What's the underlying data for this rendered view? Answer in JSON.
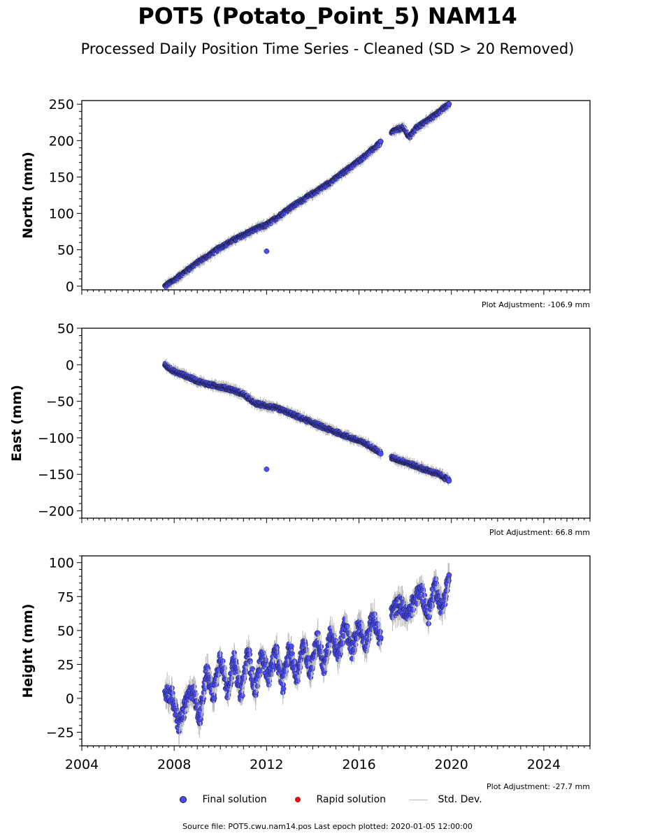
{
  "title": "POT5 (Potato_Point_5) NAM14",
  "subtitle": "Processed Daily Position Time Series - Cleaned (SD > 20 Removed)",
  "legend": {
    "final_label": "Final solution",
    "rapid_label": "Rapid solution",
    "std_label": "Std. Dev."
  },
  "footer": "Source file: POT5.cwu.nam14.pos  Last epoch plotted: 2020-01-05 12:00:00",
  "colors": {
    "final": "#4a4cf5",
    "rapid": "#e01010",
    "std": "#bbbbbb",
    "edge": "#1a1a33"
  },
  "chart_data": [
    {
      "type": "scatter",
      "ylabel": "North (mm)",
      "adjustment_text": "Plot Adjustment: -106.9 mm",
      "xlim": [
        2004,
        2026
      ],
      "ylim": [
        -5,
        255
      ],
      "yticks": [
        0,
        50,
        100,
        150,
        200,
        250
      ],
      "x": [
        2007.6,
        2008.0,
        2008.5,
        2009.0,
        2009.5,
        2010.0,
        2010.5,
        2011.0,
        2011.5,
        2012.0,
        2012.5,
        2013.0,
        2013.5,
        2014.0,
        2014.5,
        2015.0,
        2015.5,
        2016.0,
        2016.5,
        2016.9,
        2017.5,
        2017.9,
        2018.2,
        2018.5,
        2019.0,
        2019.5,
        2019.9
      ],
      "y": [
        0,
        8,
        20,
        32,
        42,
        53,
        62,
        70,
        78,
        84,
        95,
        107,
        117,
        127,
        137,
        148,
        160,
        172,
        185,
        196,
        213,
        218,
        205,
        218,
        228,
        240,
        250
      ],
      "outliers": [
        {
          "x": 2012.0,
          "y": 48
        }
      ]
    },
    {
      "type": "scatter",
      "ylabel": "East (mm)",
      "adjustment_text": "Plot Adjustment: 66.8 mm",
      "xlim": [
        2004,
        2026
      ],
      "ylim": [
        -210,
        50
      ],
      "yticks": [
        -200,
        -150,
        -100,
        -50,
        0,
        50
      ],
      "x": [
        2007.6,
        2008.0,
        2008.5,
        2009.0,
        2009.5,
        2010.0,
        2010.5,
        2011.0,
        2011.5,
        2012.0,
        2012.5,
        2013.0,
        2013.5,
        2014.0,
        2014.5,
        2015.0,
        2015.5,
        2016.0,
        2016.5,
        2016.9,
        2017.5,
        2018.0,
        2018.5,
        2019.0,
        2019.5,
        2019.9
      ],
      "y": [
        0,
        -9,
        -15,
        -22,
        -27,
        -30,
        -34,
        -40,
        -53,
        -56,
        -60,
        -66,
        -73,
        -79,
        -86,
        -92,
        -98,
        -104,
        -111,
        -120,
        -128,
        -133,
        -139,
        -145,
        -150,
        -158
      ],
      "outliers": [
        {
          "x": 2012.0,
          "y": -143
        }
      ]
    },
    {
      "type": "scatter",
      "ylabel": "Height (mm)",
      "adjustment_text": "Plot Adjustment: -27.7 mm",
      "xlim": [
        2004,
        2026
      ],
      "ylim": [
        -35,
        105
      ],
      "yticks": [
        -25,
        0,
        25,
        50,
        75,
        100
      ],
      "xticks": [
        2004,
        2008,
        2012,
        2016,
        2020,
        2024
      ],
      "x": [
        2007.6,
        2007.9,
        2008.2,
        2008.5,
        2008.8,
        2009.1,
        2009.4,
        2009.7,
        2010.0,
        2010.3,
        2010.6,
        2010.9,
        2011.2,
        2011.5,
        2011.8,
        2012.1,
        2012.4,
        2012.7,
        2013.0,
        2013.3,
        2013.6,
        2013.9,
        2014.2,
        2014.5,
        2014.8,
        2015.1,
        2015.4,
        2015.7,
        2016.0,
        2016.3,
        2016.6,
        2016.9,
        2017.5,
        2017.8,
        2018.1,
        2018.4,
        2018.7,
        2019.0,
        2019.3,
        2019.6,
        2019.9
      ],
      "y": [
        5,
        2,
        -20,
        -5,
        8,
        -15,
        20,
        2,
        32,
        5,
        28,
        2,
        35,
        5,
        32,
        15,
        35,
        10,
        38,
        15,
        40,
        20,
        45,
        22,
        50,
        30,
        55,
        35,
        55,
        40,
        60,
        45,
        65,
        70,
        60,
        72,
        80,
        60,
        85,
        65,
        90
      ],
      "outliers": []
    }
  ]
}
